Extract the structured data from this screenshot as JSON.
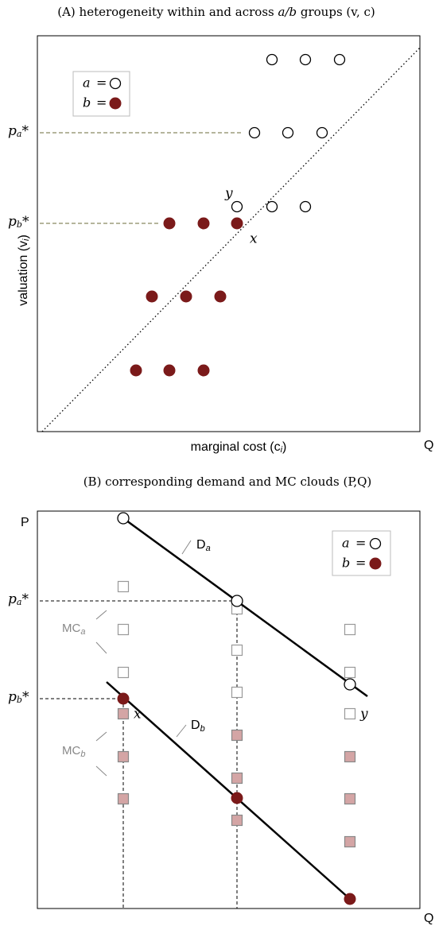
{
  "panel_a": {
    "title": {
      "head": "(A) heterogeneity within and across ",
      "ab": "a/b",
      "mid": " groups ",
      "vc": "(v, c)"
    },
    "legend": {
      "a": "a",
      "b": "b",
      "eq": "="
    },
    "pa": {
      "main": "p",
      "sub": "a",
      "tail": "*"
    },
    "pb": {
      "main": "p",
      "sub": "b",
      "tail": "*"
    },
    "point_y": "y",
    "point_x": "x",
    "y_label": {
      "main": "valuation (v",
      "sub": "i",
      "tail": ")"
    },
    "x_label": {
      "main": "marginal cost (c",
      "sub": "i",
      "tail": ")"
    },
    "q_label": "Q"
  },
  "panel_b": {
    "title": "(B) corresponding demand and MC clouds (P,Q)",
    "p_label": "P",
    "q_label": "Q",
    "legend": {
      "a": "a",
      "b": "b",
      "eq": "="
    },
    "pa": {
      "main": "p",
      "sub": "a",
      "tail": "*"
    },
    "pb": {
      "main": "p",
      "sub": "b",
      "tail": "*"
    },
    "da": {
      "main": "D",
      "sub": "a"
    },
    "db": {
      "main": "D",
      "sub": "b"
    },
    "mca": {
      "main": "MC",
      "sub": "a"
    },
    "mcb": {
      "main": "MC",
      "sub": "b"
    },
    "point_x": "x",
    "point_y": "y"
  }
}
